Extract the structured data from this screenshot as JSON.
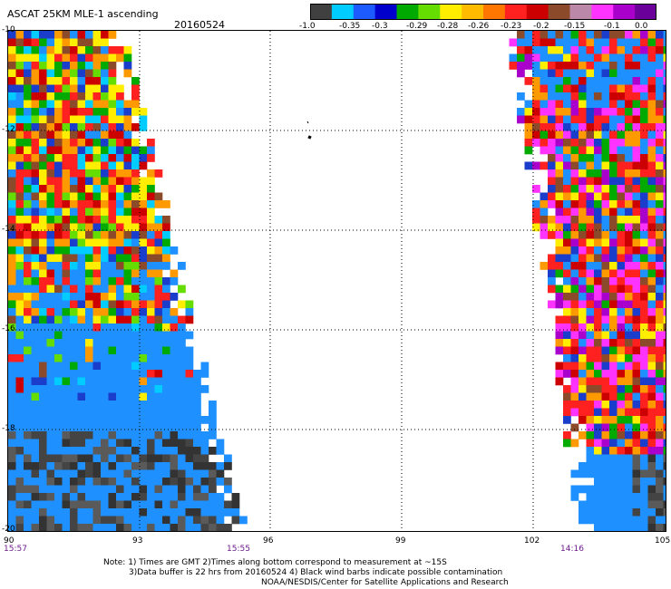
{
  "header": {
    "title": "ASCAT 25KM MLE-1 ascending",
    "date": "20160524"
  },
  "legend": {
    "colors": [
      "#404040",
      "#00ccff",
      "#1e5bff",
      "#0000cc",
      "#00aa00",
      "#66dd00",
      "#ffee00",
      "#ffbb00",
      "#ff7700",
      "#ff2020",
      "#cc0000",
      "#8b4a2a",
      "#bb88aa",
      "#ff33ff",
      "#aa00cc",
      "#6a0099"
    ],
    "labels": [
      "-1.0",
      "-0.35",
      "-0.3",
      "-0.29",
      "-0.28",
      "-0.26",
      "-0.23",
      "-0.2",
      "-0.15",
      "-0.1",
      "0.0"
    ]
  },
  "axes": {
    "y_labels": [
      "-10",
      "-12",
      "-14",
      "-16",
      "-18",
      "-20"
    ],
    "x_labels": [
      "90",
      "93",
      "96",
      "99",
      "102",
      "105"
    ],
    "time_labels": [
      "15:57",
      "15:55",
      "14:16"
    ]
  },
  "map": {
    "lon_range": [
      90,
      105
    ],
    "lat_range": [
      -20,
      -10
    ],
    "palette": {
      "dark": [
        "#333333",
        "#5a5a5a",
        "#444444"
      ],
      "blue": "#1e90ff",
      "cyan": "#00ccff",
      "navy": "#1a3dcc",
      "green": "#00aa00",
      "lime": "#66dd00",
      "yellow": "#ffee00",
      "orange": "#ff9900",
      "red": "#ff2020",
      "darkred": "#cc0000",
      "brown": "#8b4a2a",
      "magenta": "#ff33ff",
      "purple": "#aa00cc"
    }
  },
  "notes": {
    "line1": "Note: 1) Times are GMT 2)Times along bottom correspond to measurement at ~15S",
    "line2": "3)Data buffer is 22 hrs from 20160524 4) Black wind barbs indicate possible contamination",
    "line3": "NOAA/NESDIS/Center for Satellite Applications and Research"
  }
}
